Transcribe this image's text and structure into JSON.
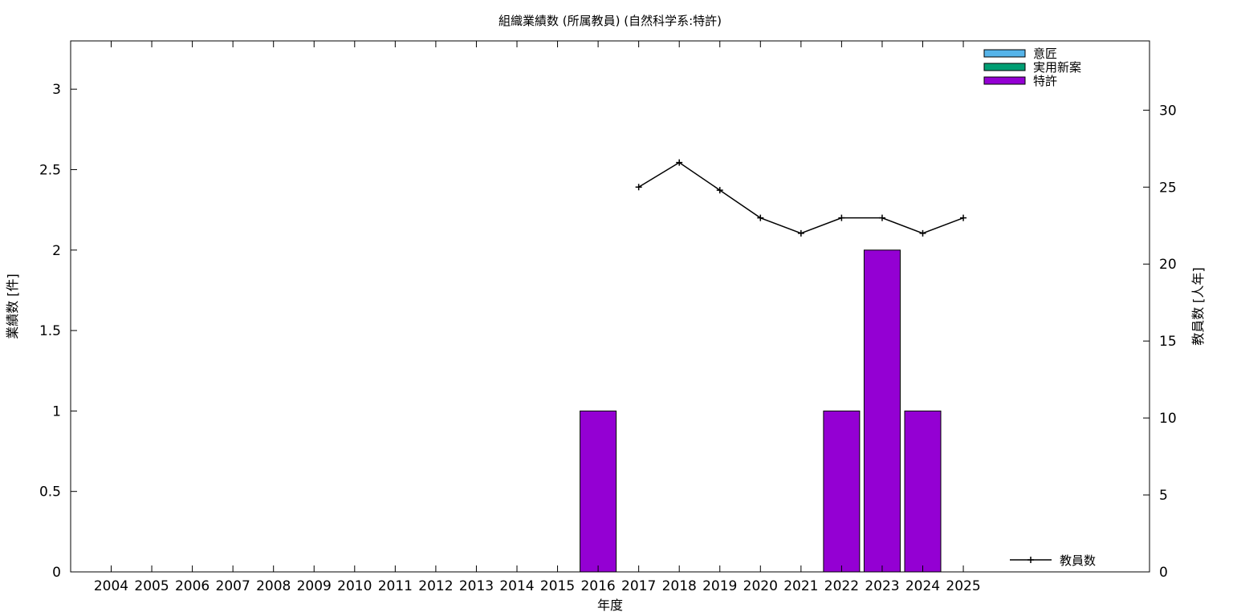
{
  "chart_data": {
    "type": "bar",
    "title": "組織業績数 (所属教員) (自然科学系:特許)",
    "xlabel": "年度",
    "ylabel": "業績数 [件]",
    "y2label": "教員数 [人年]",
    "categories": [
      "2004",
      "2005",
      "2006",
      "2007",
      "2008",
      "2009",
      "2010",
      "2011",
      "2012",
      "2013",
      "2014",
      "2015",
      "2016",
      "2017",
      "2018",
      "2019",
      "2020",
      "2021",
      "2022",
      "2023",
      "2024",
      "2025"
    ],
    "ylim": [
      0,
      3.3
    ],
    "yticks": [
      "0",
      "0.5",
      "1",
      "1.5",
      "2",
      "2.5",
      "3"
    ],
    "y2lim": [
      0,
      34.5
    ],
    "y2ticks": [
      "0",
      "5",
      "10",
      "15",
      "20",
      "25",
      "30"
    ],
    "series": [
      {
        "name": "意匠",
        "type": "bar",
        "color": "#56b4e9",
        "values": [
          0,
          0,
          0,
          0,
          0,
          0,
          0,
          0,
          0,
          0,
          0,
          0,
          0,
          0,
          0,
          0,
          0,
          0,
          0,
          0,
          0,
          0
        ]
      },
      {
        "name": "実用新案",
        "type": "bar",
        "color": "#009e73",
        "values": [
          0,
          0,
          0,
          0,
          0,
          0,
          0,
          0,
          0,
          0,
          0,
          0,
          0,
          0,
          0,
          0,
          0,
          0,
          0,
          0,
          0,
          0
        ]
      },
      {
        "name": "特許",
        "type": "bar",
        "color": "#9400d3",
        "values": [
          0,
          0,
          0,
          0,
          0,
          0,
          0,
          0,
          0,
          0,
          0,
          0,
          1,
          0,
          0,
          0,
          0,
          0,
          1,
          2,
          1,
          0
        ]
      },
      {
        "name": "教員数",
        "type": "line",
        "axis": "right",
        "color": "#000000",
        "values": [
          null,
          null,
          null,
          null,
          null,
          null,
          null,
          null,
          null,
          null,
          null,
          null,
          null,
          25,
          26.6,
          24.8,
          23,
          22,
          23,
          23,
          22,
          23
        ]
      }
    ],
    "legend_placement": "top-right",
    "line_legend_placement": "bottom-right",
    "grid": false
  }
}
